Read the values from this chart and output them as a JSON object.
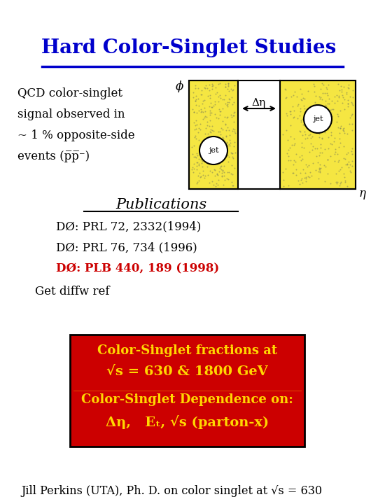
{
  "title": "Hard Color-Singlet Studies",
  "title_color": "#0000CC",
  "title_fontsize": 20,
  "bg_color": "#FFFFFF",
  "text_color": "#000000",
  "dark_blue": "#0000CC",
  "red_color": "#CC0000",
  "yellow_color": "#F5E642",
  "gold_text": "#FFD700",
  "left_text_lines": [
    "QCD color-singlet",
    "signal observed in",
    "~ 1 % opposite-side",
    "events (p̅p̅⁻)"
  ],
  "phi_label": "ϕ",
  "eta_label": "η",
  "delta_eta_label": "Δη",
  "jet_label": "jet",
  "publications_title": "Publications",
  "pub_lines": [
    "DØ: PRL 72, 2332(1994)",
    "DØ: PRL 76, 734 (1996)",
    "DØ: PLB 440, 189 (1998)"
  ],
  "pub_colors": [
    "#000000",
    "#000000",
    "#CC0000"
  ],
  "get_diffw": "Get diffw ref",
  "box1_line1": "Color-Singlet fractions at",
  "box1_line2": "√s = 630 & 1800 GeV",
  "box2_line1": "Color-Singlet Dependence on:",
  "box2_line2": "Δη,   Eₜ, √s (parton-x)",
  "bottom_text": "Jill Perkins (UTA), Ph. D. on color singlet at √s = 630"
}
